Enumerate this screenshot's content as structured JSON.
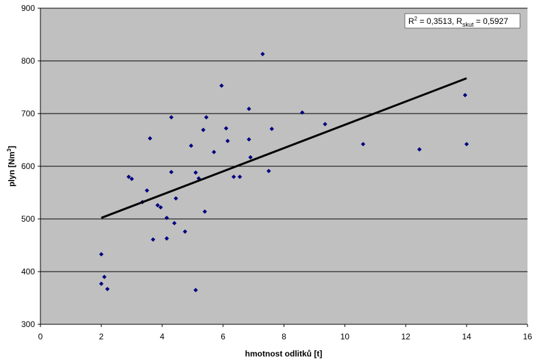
{
  "chart_data": {
    "type": "scatter",
    "title": "",
    "xlabel": "hmotnost odlitků [t]",
    "ylabel_main": "plyn [Nm",
    "ylabel_sup": "3",
    "ylabel_end": "]",
    "xlim": [
      0,
      16
    ],
    "ylim": [
      300,
      900
    ],
    "x_ticks": [
      "0",
      "2",
      "4",
      "6",
      "8",
      "10",
      "12",
      "14",
      "16"
    ],
    "y_ticks": [
      "300",
      "400",
      "500",
      "600",
      "700",
      "800",
      "900"
    ],
    "grid": {
      "horizontal": true,
      "vertical": false
    },
    "legend": "none",
    "colors": {
      "plot_background": "#c0c0c0",
      "marker": "#000080",
      "trendline": "#000000"
    },
    "annotation": {
      "r2_prefix": "R",
      "r2_sup": "2",
      "r2_value": " = 0,3513, R",
      "r_sub": "skut",
      "r_value": " = 0,5927"
    },
    "trendline": {
      "x": [
        2.0,
        14.0
      ],
      "y": [
        502,
        767
      ]
    },
    "points": [
      {
        "x": 2.0,
        "y": 433
      },
      {
        "x": 2.0,
        "y": 377
      },
      {
        "x": 2.1,
        "y": 390
      },
      {
        "x": 2.2,
        "y": 367
      },
      {
        "x": 2.9,
        "y": 580
      },
      {
        "x": 3.0,
        "y": 576
      },
      {
        "x": 3.35,
        "y": 532
      },
      {
        "x": 3.5,
        "y": 554
      },
      {
        "x": 3.6,
        "y": 653
      },
      {
        "x": 3.7,
        "y": 461
      },
      {
        "x": 3.85,
        "y": 526
      },
      {
        "x": 3.95,
        "y": 522
      },
      {
        "x": 4.15,
        "y": 502
      },
      {
        "x": 4.15,
        "y": 463
      },
      {
        "x": 4.3,
        "y": 589
      },
      {
        "x": 4.3,
        "y": 693
      },
      {
        "x": 4.4,
        "y": 492
      },
      {
        "x": 4.45,
        "y": 539
      },
      {
        "x": 4.75,
        "y": 476
      },
      {
        "x": 4.95,
        "y": 639
      },
      {
        "x": 5.1,
        "y": 588
      },
      {
        "x": 5.1,
        "y": 365
      },
      {
        "x": 5.2,
        "y": 577
      },
      {
        "x": 5.35,
        "y": 669
      },
      {
        "x": 5.4,
        "y": 514
      },
      {
        "x": 5.45,
        "y": 693
      },
      {
        "x": 5.7,
        "y": 627
      },
      {
        "x": 5.95,
        "y": 753
      },
      {
        "x": 6.1,
        "y": 672
      },
      {
        "x": 6.15,
        "y": 648
      },
      {
        "x": 6.35,
        "y": 580
      },
      {
        "x": 6.55,
        "y": 580
      },
      {
        "x": 6.85,
        "y": 709
      },
      {
        "x": 6.85,
        "y": 651
      },
      {
        "x": 6.9,
        "y": 617
      },
      {
        "x": 7.3,
        "y": 813
      },
      {
        "x": 7.5,
        "y": 591
      },
      {
        "x": 7.6,
        "y": 671
      },
      {
        "x": 8.6,
        "y": 702
      },
      {
        "x": 9.35,
        "y": 680
      },
      {
        "x": 10.6,
        "y": 642
      },
      {
        "x": 12.45,
        "y": 632
      },
      {
        "x": 13.95,
        "y": 735
      },
      {
        "x": 14.0,
        "y": 642
      }
    ]
  }
}
